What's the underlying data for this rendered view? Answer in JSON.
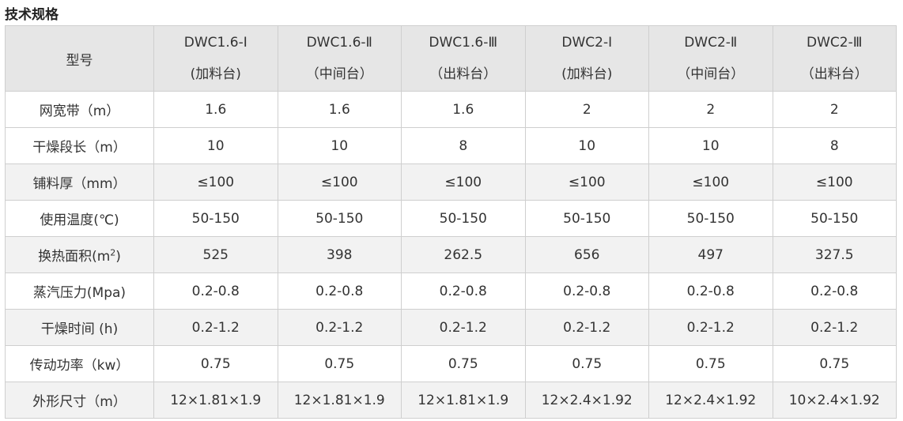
{
  "title": "技术规格",
  "header": {
    "label": "型号",
    "models": [
      {
        "name": "DWC1.6-Ⅰ",
        "type": "(加料台)"
      },
      {
        "name": "DWC1.6-Ⅱ",
        "type": "（中间台）"
      },
      {
        "name": "DWC1.6-Ⅲ",
        "type": "（出料台）"
      },
      {
        "name": "DWC2-Ⅰ",
        "type": "(加料台)"
      },
      {
        "name": "DWC2-Ⅱ",
        "type": "（中间台）"
      },
      {
        "name": "DWC2-Ⅲ",
        "type": "（出料台）"
      }
    ]
  },
  "rows": [
    {
      "label": "网宽带（m）",
      "values": [
        "1.6",
        "1.6",
        "1.6",
        "2",
        "2",
        "2"
      ]
    },
    {
      "label": "干燥段长（m）",
      "values": [
        "10",
        "10",
        "8",
        "10",
        "10",
        "8"
      ]
    },
    {
      "label": "铺料厚（mm）",
      "values": [
        "≤100",
        "≤100",
        "≤100",
        "≤100",
        "≤100",
        "≤100"
      ]
    },
    {
      "label": "使用温度(℃)",
      "values": [
        "50-150",
        "50-150",
        "50-150",
        "50-150",
        "50-150",
        "50-150"
      ]
    },
    {
      "label": "换热面积(m",
      "label_sup": "2",
      "label_end": ")",
      "values": [
        "525",
        "398",
        "262.5",
        "656",
        "497",
        "327.5"
      ]
    },
    {
      "label": "蒸汽压力(Mpa)",
      "values": [
        "0.2-0.8",
        "0.2-0.8",
        "0.2-0.8",
        "0.2-0.8",
        "0.2-0.8",
        "0.2-0.8"
      ]
    },
    {
      "label": "干燥时间 (h)",
      "values": [
        "0.2-1.2",
        "0.2-1.2",
        "0.2-1.2",
        "0.2-1.2",
        "0.2-1.2",
        "0.2-1.2"
      ]
    },
    {
      "label": "传动功率（kw）",
      "values": [
        "0.75",
        "0.75",
        "0.75",
        "0.75",
        "0.75",
        "0.75"
      ]
    },
    {
      "label": "外形尺寸（m）",
      "values": [
        "12×1.81×1.9",
        "12×1.81×1.9",
        "12×1.81×1.9",
        "12×2.4×1.92",
        "12×2.4×1.92",
        "10×2.4×1.92"
      ]
    }
  ]
}
